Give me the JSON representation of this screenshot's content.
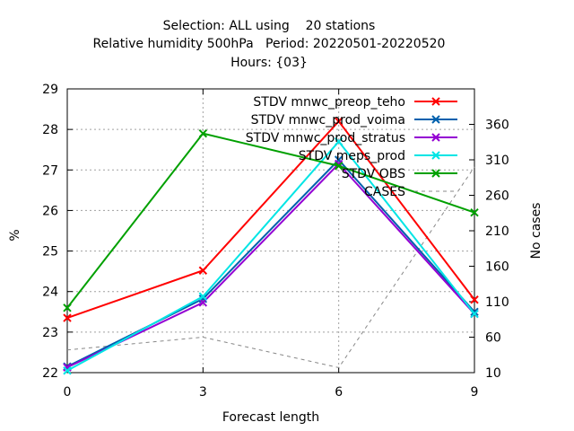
{
  "title": {
    "line1": "Selection: ALL using    20 stations",
    "line2": "Relative humidity 500hPa   Period: 20220501-20220520",
    "line3": "Hours: {03}"
  },
  "chart_data": {
    "type": "line",
    "xlabel": "Forecast length",
    "ylabel": "%",
    "y2label": "No cases",
    "x": [
      0,
      3,
      6,
      9
    ],
    "xticks": [
      "0",
      "3",
      "6",
      "9"
    ],
    "xlim": [
      0,
      9
    ],
    "ylim": [
      22,
      29
    ],
    "yticks": [
      "22",
      "23",
      "24",
      "25",
      "26",
      "27",
      "28",
      "29"
    ],
    "y2lim": [
      10,
      410
    ],
    "y2ticks": [
      "10",
      "60",
      "110",
      "160",
      "210",
      "260",
      "310",
      "360"
    ],
    "grid": true,
    "legend_position": "top-right",
    "series": [
      {
        "name": "STDV mnwc_preop_teho",
        "color": "#ff0000",
        "values": [
          23.35,
          24.52,
          28.2,
          23.8
        ]
      },
      {
        "name": "STDV mnwc_prod_voima",
        "color": "#0060ad",
        "values": [
          22.15,
          23.82,
          27.25,
          23.5
        ]
      },
      {
        "name": "STDV mnwc_prod_stratus",
        "color": "#9400d3",
        "values": [
          22.13,
          23.73,
          27.15,
          23.45
        ]
      },
      {
        "name": "STDV meps_prod",
        "color": "#00e5e5",
        "values": [
          22.05,
          23.88,
          27.7,
          23.45
        ]
      },
      {
        "name": "STDV OBS",
        "color": "#00a000",
        "values": [
          23.6,
          27.9,
          27.1,
          25.95
        ]
      },
      {
        "name": "CASES",
        "color": "#888888",
        "dashed": true,
        "axis": "y2",
        "values": [
          42,
          60,
          17,
          300
        ]
      }
    ]
  }
}
